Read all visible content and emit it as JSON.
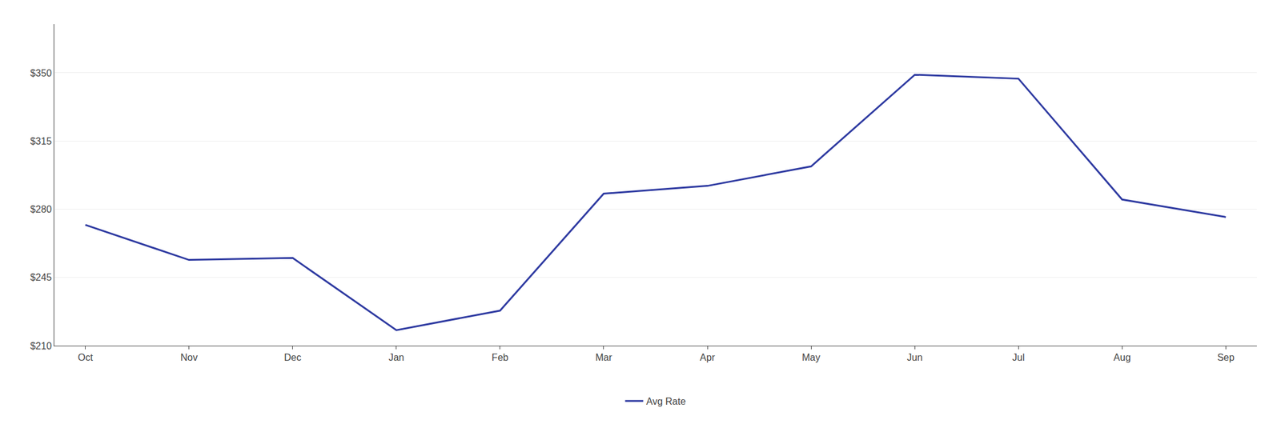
{
  "chart_data": {
    "type": "line",
    "categories": [
      "Oct",
      "Nov",
      "Dec",
      "Jan",
      "Feb",
      "Mar",
      "Apr",
      "May",
      "Jun",
      "Jul",
      "Aug",
      "Sep"
    ],
    "series": [
      {
        "name": "Avg Rate",
        "color": "#2e3aa1",
        "values": [
          272,
          254,
          255,
          218,
          228,
          288,
          292,
          302,
          349,
          347,
          285,
          276
        ]
      }
    ],
    "ylim": [
      210,
      375
    ],
    "yticks": [
      {
        "value": 210,
        "label": "$210"
      },
      {
        "value": 245,
        "label": "$245"
      },
      {
        "value": 280,
        "label": "$280"
      },
      {
        "value": 315,
        "label": "$315"
      },
      {
        "value": 350,
        "label": "$350"
      }
    ],
    "grid": true,
    "legend": "bottom"
  }
}
